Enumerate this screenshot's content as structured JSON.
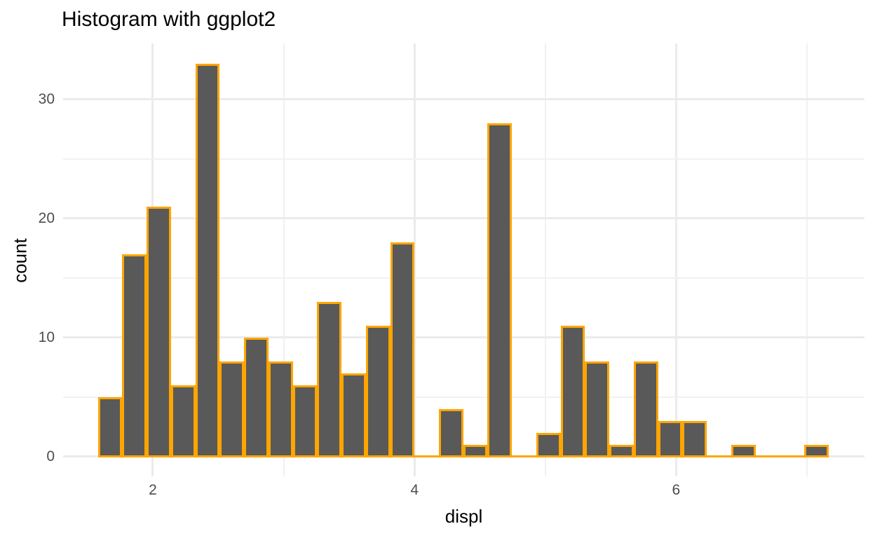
{
  "title": "Histogram with ggplot2",
  "chart_data": {
    "type": "bar",
    "subtype": "histogram",
    "xlabel": "displ",
    "ylabel": "count",
    "bin_start": 1.58,
    "bin_width": 0.1862,
    "counts": [
      5,
      17,
      21,
      6,
      33,
      8,
      10,
      8,
      6,
      13,
      7,
      11,
      18,
      0,
      4,
      1,
      28,
      0,
      2,
      11,
      8,
      1,
      8,
      3,
      3,
      0,
      1,
      0,
      0,
      1
    ],
    "x_ticks": [
      2,
      4,
      6
    ],
    "x_minor_ticks": [
      3,
      5,
      7
    ],
    "y_ticks": [
      0,
      10,
      20,
      30
    ],
    "y_minor_ticks": [
      5,
      15,
      25
    ],
    "xlim": [
      1.314,
      7.44
    ],
    "ylim": [
      -1.65,
      34.7
    ],
    "grid": "on",
    "legend": "none",
    "bar_fill": "#595959",
    "bar_stroke": "#FFA500",
    "grid_major_color": "#EBEBEB",
    "grid_minor_color": "#F1F1F1",
    "background_color": "#FFFFFF",
    "tick_label_color": "#4D4D4D",
    "text_color": "#000000"
  }
}
